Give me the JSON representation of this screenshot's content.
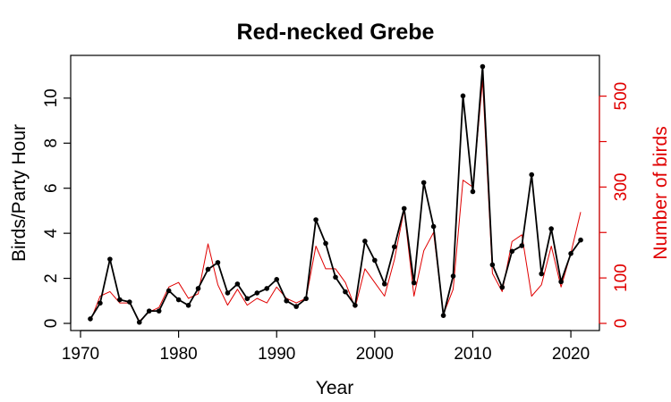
{
  "chart_data": {
    "type": "line",
    "title": "Red-necked Grebe",
    "xlabel": "Year",
    "ylabel": "Birds/Party Hour",
    "y2label": "Number of birds",
    "xlim": [
      1970,
      2022
    ],
    "ylim": [
      0,
      11.5
    ],
    "y2lim": [
      0,
      570
    ],
    "x_ticks": [
      1970,
      1980,
      1990,
      2000,
      2010,
      2020
    ],
    "y_ticks": [
      0,
      2,
      4,
      6,
      8,
      10
    ],
    "y2_ticks": [
      0,
      100,
      300,
      500
    ],
    "y2_minor_ticks": [
      0,
      100,
      200,
      300,
      400,
      500
    ],
    "grid": false,
    "colors": {
      "primary": "#000000",
      "secondary": "#e00000"
    },
    "x": [
      1971,
      1972,
      1973,
      1974,
      1975,
      1976,
      1977,
      1978,
      1979,
      1980,
      1981,
      1982,
      1983,
      1984,
      1985,
      1986,
      1987,
      1988,
      1989,
      1990,
      1991,
      1992,
      1993,
      1994,
      1995,
      1996,
      1997,
      1998,
      1999,
      2000,
      2001,
      2002,
      2003,
      2004,
      2005,
      2006,
      2007,
      2008,
      2009,
      2010,
      2011,
      2012,
      2013,
      2014,
      2015,
      2016,
      2017,
      2018,
      2019,
      2020,
      2021
    ],
    "series": [
      {
        "axis": "left",
        "color": "#000000",
        "markers": true,
        "values": [
          0.2,
          0.9,
          2.85,
          1.05,
          0.95,
          0.05,
          0.55,
          0.55,
          1.45,
          1.05,
          0.8,
          1.55,
          2.4,
          2.7,
          1.35,
          1.75,
          1.1,
          1.35,
          1.55,
          1.95,
          1.0,
          0.75,
          1.1,
          4.6,
          3.55,
          2.05,
          1.4,
          0.8,
          3.65,
          2.8,
          1.75,
          3.4,
          5.1,
          1.8,
          6.25,
          4.3,
          0.35,
          2.1,
          10.1,
          5.85,
          11.4,
          2.6,
          1.6,
          3.2,
          3.45,
          6.6,
          2.2,
          4.2,
          1.85,
          3.1,
          3.7
        ]
      },
      {
        "axis": "right",
        "color": "#e00000",
        "markers": false,
        "values": [
          5,
          60,
          70,
          45,
          45,
          5,
          25,
          35,
          80,
          90,
          55,
          65,
          175,
          85,
          40,
          75,
          40,
          55,
          45,
          80,
          55,
          45,
          55,
          170,
          120,
          120,
          90,
          35,
          120,
          90,
          60,
          140,
          250,
          60,
          160,
          200,
          20,
          75,
          315,
          300,
          535,
          110,
          70,
          180,
          195,
          60,
          85,
          170,
          80,
          155,
          245
        ]
      }
    ]
  }
}
